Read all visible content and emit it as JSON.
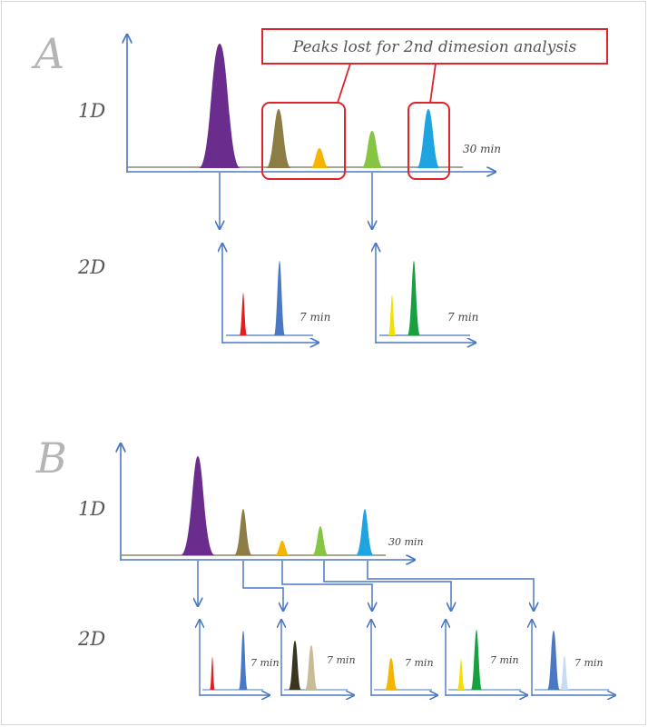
{
  "panel_a": {
    "letter": "A",
    "label_1d": "1D",
    "label_2d": "2D",
    "time_1d": "30 min",
    "time_2d": "7 min",
    "callout": "Peaks lost for 2nd dimesion analysis"
  },
  "panel_b": {
    "letter": "B",
    "label_1d": "1D",
    "label_2d": "2D",
    "time_1d": "30 min",
    "time_2d": "7 min"
  },
  "colors": {
    "axis": "#4a78c2",
    "highlight": "#e0242a",
    "purple": "#6a2d8e",
    "olive": "#8c7d45",
    "orange": "#f5b400",
    "lightgreen": "#86c443",
    "cyan": "#1ea5e0",
    "red": "#e02020",
    "blue": "#4a78c2",
    "yellow": "#f3e000",
    "green": "#16a040",
    "darkolive": "#3a3520",
    "tan": "#c8bc98",
    "lightblue": "#c6dcf2"
  }
}
